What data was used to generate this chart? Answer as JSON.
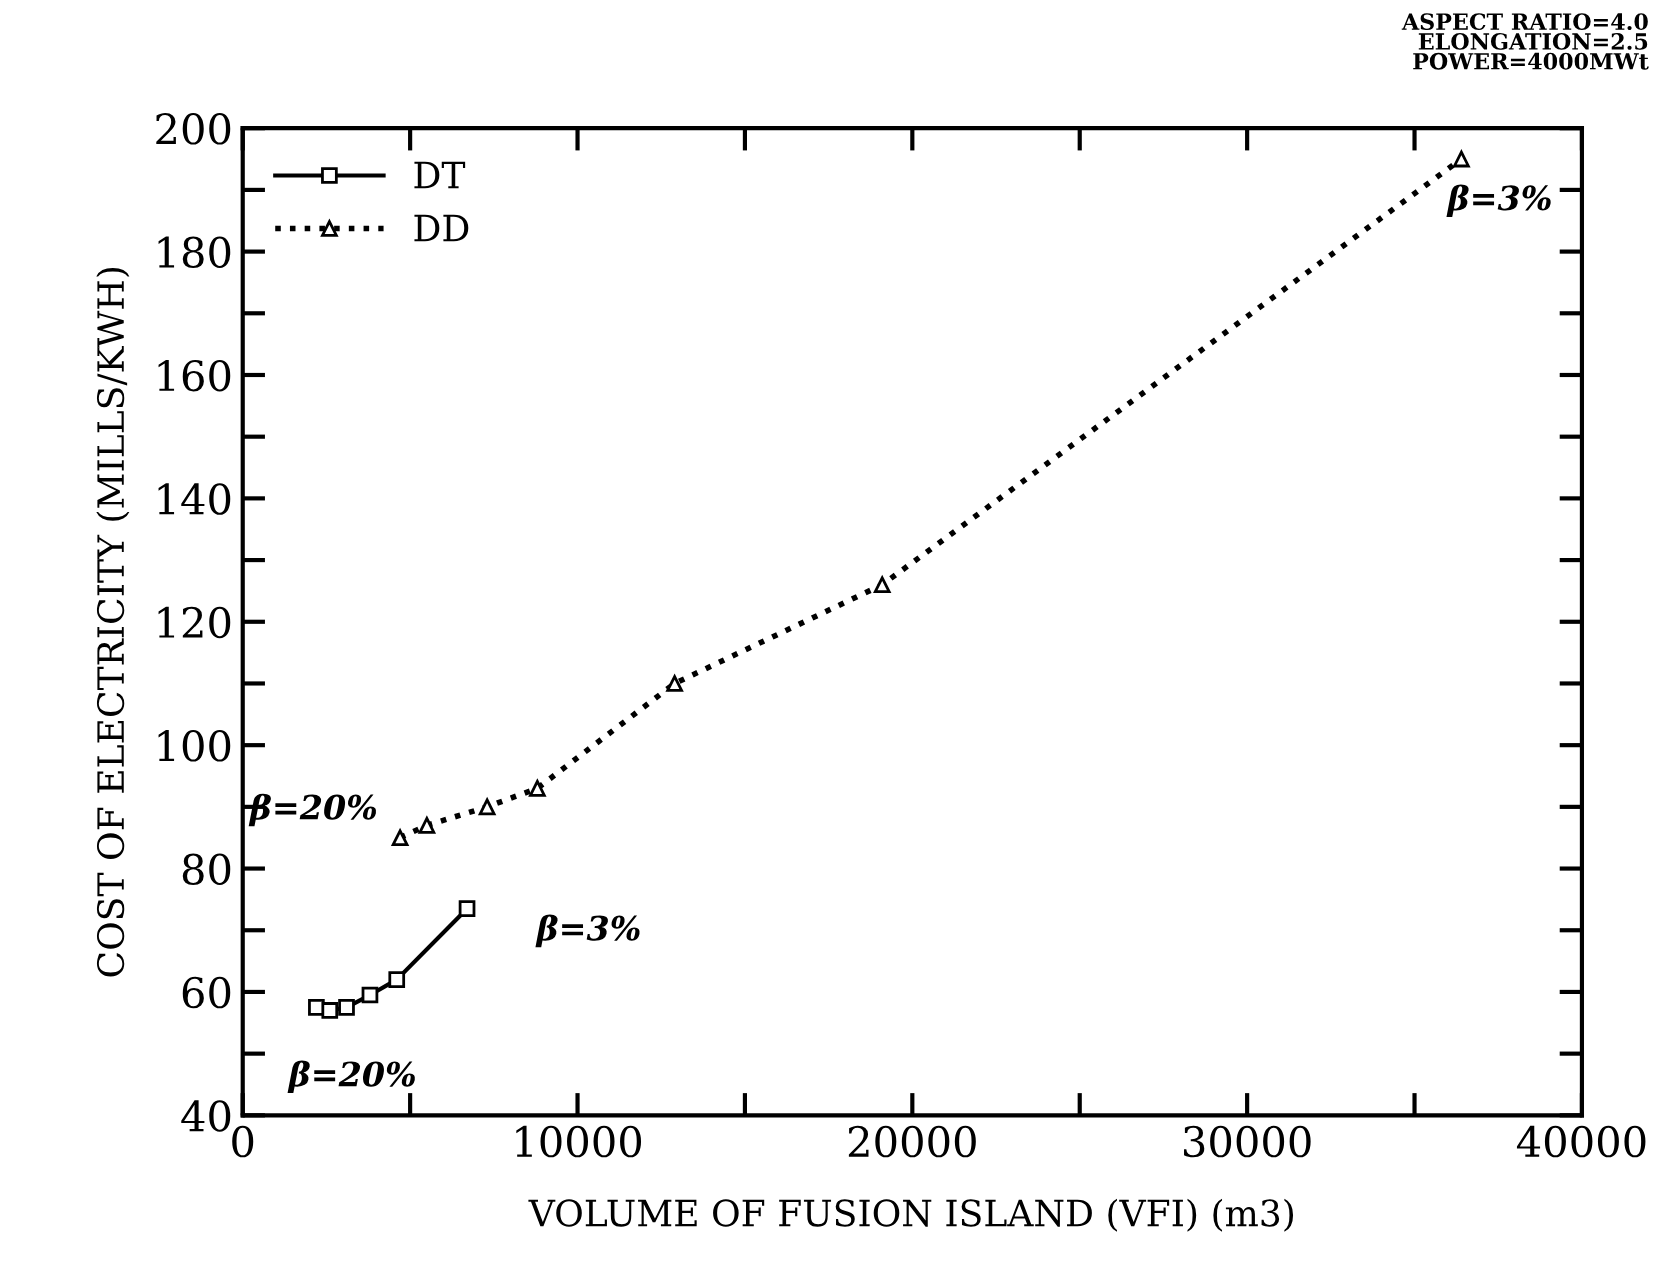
{
  "chart_data": {
    "type": "line",
    "xlabel": "VOLUME OF FUSION ISLAND (VFI) (m3)",
    "ylabel": "COST OF ELECTRICITY (MILLS/KWH)",
    "xlim": [
      0,
      40000
    ],
    "ylim": [
      40,
      200
    ],
    "xticks": [
      0,
      {
        "value": 5000,
        "label": null
      },
      10000,
      {
        "value": 15000,
        "label": null
      },
      20000,
      {
        "value": 25000,
        "label": null
      },
      30000,
      {
        "value": 35000,
        "label": null
      },
      40000
    ],
    "yticks": [
      40,
      {
        "value": 50,
        "label": null
      },
      60,
      {
        "value": 70,
        "label": null
      },
      80,
      {
        "value": 90,
        "label": null
      },
      100,
      {
        "value": 110,
        "label": null
      },
      120,
      {
        "value": 130,
        "label": null
      },
      140,
      {
        "value": 150,
        "label": null
      },
      160,
      {
        "value": 170,
        "label": null
      },
      180,
      {
        "value": 190,
        "label": null
      },
      200
    ],
    "grid": false,
    "legend": "top left",
    "series": [
      {
        "name": "DT",
        "color": "#000000",
        "marker": "square",
        "line_style": "solid",
        "x": [
          2200,
          2600,
          3100,
          3800,
          4600,
          6700
        ],
        "values": [
          57.5,
          57,
          57.5,
          59.5,
          62,
          73.5
        ]
      },
      {
        "name": "DD",
        "color": "#000000",
        "marker": "triangle",
        "line_style": "dotted",
        "x": [
          4700,
          5500,
          7300,
          8800,
          12900,
          19100,
          36400
        ],
        "values": [
          85,
          87,
          90,
          93,
          110,
          126,
          195
        ]
      }
    ],
    "annotations": [
      {
        "text": "β=20%",
        "x": 4700,
        "y": 85
      },
      {
        "text": "β=3%",
        "x": 36400,
        "y": 195
      },
      {
        "text": "β=3%",
        "x": 6700,
        "y": 73.5
      },
      {
        "text": "β=20%",
        "x": 2200,
        "y": 57.5
      },
      "ASPECT RATIO=4.0\nELONGATION=2.5\nPOWER=4000MWt"
    ]
  }
}
